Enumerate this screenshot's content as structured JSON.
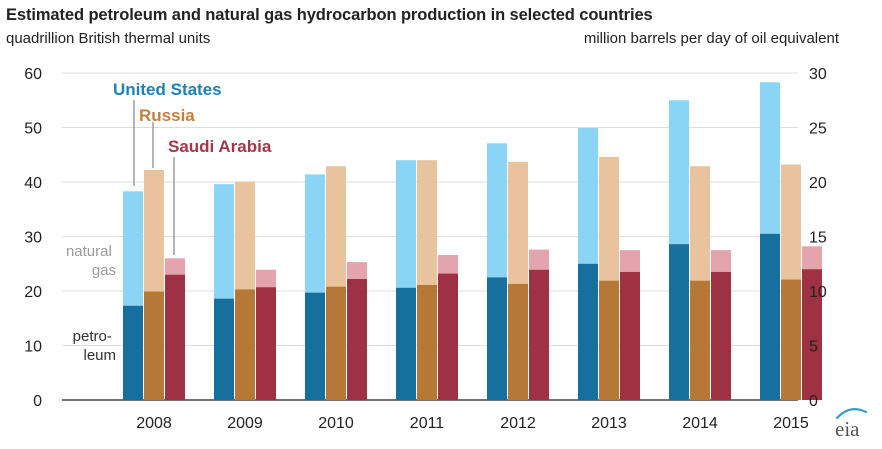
{
  "title": "Estimated petroleum and natural gas hydrocarbon production in selected countries",
  "left_axis_unit": "quadrillion British thermal units",
  "right_axis_unit": "million barrels per day of oil equivalent",
  "logo_text": "eia",
  "colors": {
    "us_petroleum": "#166f9c",
    "us_gas": "#8ad5f5",
    "russia_petroleum": "#b57836",
    "russia_gas": "#e8c39e",
    "saudi_petroleum": "#9e3143",
    "saudi_gas": "#e4a4ad",
    "grid": "#dddddd",
    "axis": "#444444",
    "label_us": "#1c82b7",
    "label_russia": "#c57f39",
    "label_saudi": "#a3384b",
    "label_gray": "#9a9a9a",
    "callout": "#9a9a9a"
  },
  "chart_data": {
    "type": "bar",
    "subtype": "stacked-grouped",
    "categories": [
      "2008",
      "2009",
      "2010",
      "2011",
      "2012",
      "2013",
      "2014",
      "2015"
    ],
    "ylim": [
      0,
      60
    ],
    "yticks": [
      0,
      10,
      20,
      30,
      40,
      50,
      60
    ],
    "y2lim": [
      0,
      30
    ],
    "y2ticks": [
      0,
      5,
      10,
      15,
      20,
      25,
      30
    ],
    "grid": true,
    "stack_labels": {
      "gas": "natural gas",
      "petroleum": "petro- leum"
    },
    "series": [
      {
        "name": "United States",
        "petroleum": [
          17.3,
          18.6,
          19.7,
          20.6,
          22.5,
          25.0,
          28.6,
          30.5
        ],
        "total": [
          38.3,
          39.6,
          41.4,
          44.0,
          47.1,
          49.9,
          55.0,
          58.3
        ]
      },
      {
        "name": "Russia",
        "petroleum": [
          19.9,
          20.3,
          20.8,
          21.1,
          21.3,
          21.9,
          21.9,
          22.1
        ],
        "total": [
          42.2,
          40.1,
          42.9,
          44.0,
          43.7,
          44.6,
          42.9,
          43.2
        ]
      },
      {
        "name": "Saudi Arabia",
        "petroleum": [
          23.0,
          20.7,
          22.2,
          23.2,
          23.9,
          23.5,
          23.5,
          24.0
        ],
        "total": [
          26.0,
          23.9,
          25.3,
          26.6,
          27.6,
          27.5,
          27.5,
          28.2
        ]
      }
    ]
  }
}
